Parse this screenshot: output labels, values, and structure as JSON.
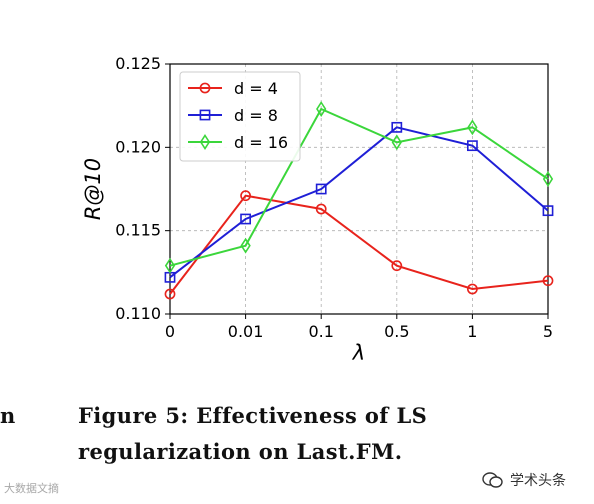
{
  "chart_data": {
    "type": "line",
    "categories": [
      "0",
      "0.01",
      "0.1",
      "0.5",
      "1",
      "5"
    ],
    "xlabel": "λ",
    "ylabel": "R@10",
    "ylim": [
      0.11,
      0.125
    ],
    "yticks": [
      "0.110",
      "0.115",
      "0.120",
      "0.125"
    ],
    "grid": true,
    "legend_position": "top-left",
    "series": [
      {
        "name": "d = 4",
        "color": "#e8231c",
        "marker": "circle",
        "values": [
          0.1112,
          0.1171,
          0.1163,
          0.1129,
          0.1115,
          0.112
        ]
      },
      {
        "name": "d = 8",
        "color": "#1f1fd6",
        "marker": "square",
        "values": [
          0.1122,
          0.1157,
          0.1175,
          0.1212,
          0.1201,
          0.1162
        ]
      },
      {
        "name": "d = 16",
        "color": "#3bd63b",
        "marker": "diamond",
        "values": [
          0.1129,
          0.1141,
          0.1223,
          0.1203,
          0.1212,
          0.1181
        ]
      }
    ]
  },
  "caption": "Figure 5: Effectiveness of LS regularization on Last.FM.",
  "left_fragment": "n",
  "watermark_left": "大数据文摘",
  "watermark_right": "学术头条"
}
